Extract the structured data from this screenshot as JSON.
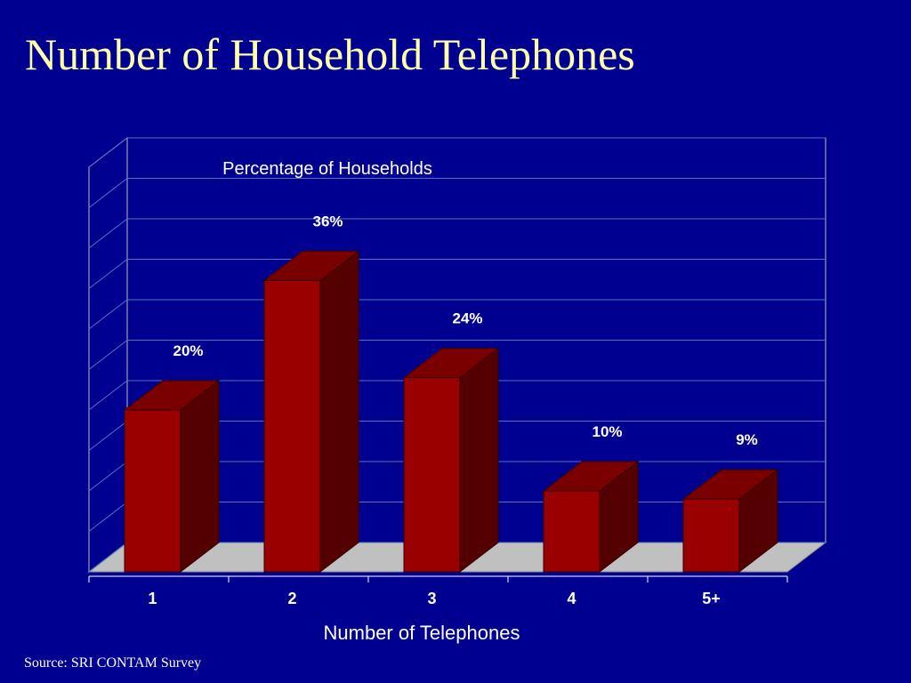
{
  "title": "Number of Household Telephones",
  "source": "Source:  SRI CONTAM Survey",
  "chart_data": {
    "type": "bar",
    "y_label": "Percentage of Households",
    "x_label": "Number of Telephones",
    "categories": [
      "1",
      "2",
      "3",
      "4",
      "5+"
    ],
    "values": [
      20,
      36,
      24,
      10,
      9
    ],
    "value_labels": [
      "20%",
      "36%",
      "24%",
      "10%",
      "9%"
    ],
    "color": "#990000",
    "ylim": [
      0,
      50
    ],
    "yticks": [
      0,
      5,
      10,
      15,
      20,
      25,
      30,
      35,
      40,
      45,
      50
    ],
    "grid": true
  }
}
